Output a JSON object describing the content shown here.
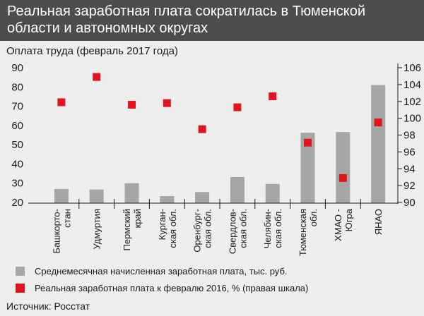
{
  "header": {
    "title": "Реальная заработная плата сократилась в Тюменской области и автономных округах",
    "subtitle": "Оплата труда (февраль 2017 года)"
  },
  "legend": {
    "bar_label": "Среднемесячная начисленная заработная плата, тыс. руб.",
    "marker_label": "Реальная заработная плата к февралю 2016, % (правая шкала)"
  },
  "source": "Источник: Росстат",
  "colors": {
    "bar": "#a6a6a6",
    "marker": "#e3141b",
    "title_bg": "#4d4d4d",
    "background": "#eeeeee"
  },
  "chart_data": {
    "type": "bar",
    "categories": [
      [
        "Башкорто-",
        "стан"
      ],
      [
        "Удмуртия"
      ],
      [
        "Пермский",
        "край"
      ],
      [
        "Курган-",
        "ская обл."
      ],
      [
        "Оренбург-",
        "ская обл."
      ],
      [
        "Свердлов-",
        "ская обл."
      ],
      [
        "Челябин-",
        "ская обл."
      ],
      [
        "Тюменская",
        "обл."
      ],
      [
        "ХМАО -",
        "Югра"
      ],
      [
        "ЯНАО"
      ]
    ],
    "series": [
      {
        "name": "Среднемесячная начисленная заработная плата, тыс. руб.",
        "type": "bar",
        "axis": "left",
        "values": [
          27.0,
          26.7,
          30.0,
          23.3,
          25.4,
          33.2,
          29.6,
          56.2,
          56.6,
          81.0
        ]
      },
      {
        "name": "Реальная заработная плата к февралю 2016, % (правая шкала)",
        "type": "scatter",
        "axis": "right",
        "values": [
          101.9,
          104.9,
          101.6,
          101.8,
          98.7,
          101.3,
          102.6,
          97.1,
          92.9,
          99.5
        ]
      }
    ],
    "y_left": {
      "min": 20,
      "max": 90,
      "ticks": [
        20,
        30,
        40,
        50,
        60,
        70,
        80,
        90
      ]
    },
    "y_right": {
      "min": 90,
      "max": 106,
      "ticks": [
        90,
        92,
        94,
        96,
        98,
        100,
        102,
        104,
        106
      ]
    },
    "grid": false,
    "legend_position": "bottom"
  }
}
